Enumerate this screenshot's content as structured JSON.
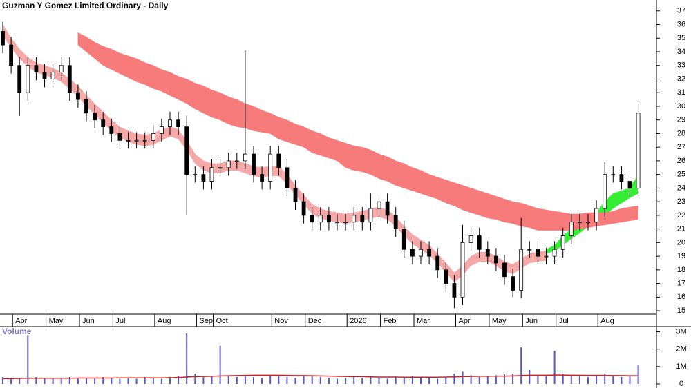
{
  "chart_data": [
    {
      "type": "candlestick",
      "title": "Guzman Y Gomez Limited Ordinary - Daily",
      "categories": [
        null,
        null,
        "Apr",
        null,
        null,
        null,
        "May",
        null,
        null,
        null,
        "Jun",
        null,
        null,
        null,
        "Jul",
        null,
        null,
        null,
        null,
        "Aug",
        null,
        null,
        null,
        null,
        "Sep",
        null,
        "Oct",
        null,
        null,
        null,
        null,
        null,
        null,
        "Nov",
        null,
        null,
        null,
        "Dec",
        null,
        null,
        null,
        null,
        "2026",
        null,
        null,
        null,
        "Feb",
        null,
        null,
        null,
        "Mar",
        null,
        null,
        null,
        null,
        "Apr",
        null,
        null,
        null,
        "May",
        null,
        null,
        null,
        "Jun",
        null,
        null,
        null,
        "Jul",
        null,
        null,
        null,
        null,
        "Aug",
        null,
        null,
        null,
        null
      ],
      "open": [
        35.5,
        34.5,
        33,
        31,
        33,
        32.5,
        32,
        32.5,
        33,
        31,
        30.5,
        29.5,
        29,
        28.5,
        28,
        27.5,
        27.5,
        27.5,
        27.5,
        28,
        28.5,
        29,
        28.5,
        25,
        25,
        24.5,
        25.5,
        25.5,
        26,
        26,
        26.5,
        25,
        24.5,
        26.5,
        25.5,
        24,
        23,
        22,
        21.5,
        22,
        21.5,
        21.5,
        21.5,
        22,
        21.5,
        22.5,
        23,
        22,
        21,
        19.5,
        19,
        19.5,
        19,
        18,
        17,
        16,
        20,
        20.5,
        19.5,
        19,
        18.5,
        17.5,
        16.5,
        19.5,
        19.5,
        19,
        19,
        19.5,
        20.5,
        21.5,
        21.5,
        21.5,
        22.5,
        25,
        25,
        24.5,
        24
      ],
      "high": [
        36.2,
        35.1,
        33.6,
        33.6,
        33.6,
        33.1,
        33.1,
        33.6,
        33.6,
        31.6,
        31.1,
        30.1,
        29.6,
        29.1,
        28.6,
        28.1,
        28.1,
        28.1,
        28.6,
        29.1,
        29.6,
        29.6,
        29.3,
        25.6,
        25.6,
        26.1,
        26.1,
        26.6,
        26.6,
        34.1,
        27.1,
        25.6,
        27.1,
        27.1,
        26.1,
        24.6,
        23.6,
        22.6,
        22.6,
        22.6,
        22.1,
        22.1,
        22.6,
        22.6,
        23.6,
        23.6,
        23.6,
        22.6,
        21.6,
        20.1,
        20.1,
        20.1,
        19.6,
        18.6,
        17.6,
        21.3,
        21.1,
        21.1,
        20.1,
        19.6,
        19.1,
        18.1,
        21.8,
        20.1,
        20.1,
        19.6,
        20.1,
        21.1,
        22.1,
        22.1,
        22.1,
        23.1,
        25.9,
        25.6,
        25.6,
        25.1,
        30.2
      ],
      "low": [
        33.9,
        32.4,
        29.3,
        30.4,
        31.9,
        31.4,
        31.4,
        31.9,
        30.4,
        29.9,
        28.9,
        28.4,
        27.9,
        27.4,
        26.9,
        26.9,
        26.9,
        26.9,
        26.9,
        27.4,
        27.9,
        27.9,
        22.0,
        24.4,
        23.9,
        23.9,
        24.9,
        24.9,
        25.4,
        25.4,
        24.4,
        23.9,
        23.9,
        24.9,
        23.4,
        22.4,
        21.4,
        20.9,
        20.9,
        20.9,
        20.9,
        20.9,
        20.9,
        20.9,
        20.9,
        21.9,
        21.4,
        20.4,
        18.9,
        18.4,
        18.4,
        18.4,
        17.4,
        16.4,
        15.2,
        15.4,
        19.4,
        18.9,
        18.4,
        17.9,
        16.9,
        16.0,
        15.9,
        18.9,
        18.4,
        18.4,
        18.4,
        18.9,
        19.9,
        20.9,
        20.9,
        20.9,
        21.9,
        24.4,
        23.9,
        23.4,
        23.4
      ],
      "close": [
        34.5,
        33,
        31,
        33,
        32.5,
        32,
        32.5,
        33,
        31,
        30.5,
        29.5,
        29,
        28.5,
        28,
        27.5,
        27.5,
        27.5,
        27.5,
        28,
        28.5,
        29,
        28.5,
        25,
        25,
        24.5,
        25.5,
        25.5,
        26,
        26,
        26.5,
        25,
        24.5,
        26.5,
        25.5,
        24,
        23,
        22,
        21.5,
        22,
        21.5,
        21.5,
        21.5,
        22,
        21.5,
        22.5,
        23,
        22,
        21,
        19.5,
        19,
        19.5,
        19,
        18,
        17,
        16,
        20,
        20.5,
        19.5,
        19,
        18.5,
        17.5,
        16.5,
        19.5,
        19.5,
        19,
        19,
        19.5,
        20.5,
        21.5,
        21.5,
        21.5,
        22.5,
        25,
        25,
        24.5,
        24,
        29.5
      ],
      "bands": [
        {
          "color": "#f5a8a8",
          "upper": [
            36,
            35,
            34.2,
            33.6,
            33.2,
            33,
            32.8,
            32.5,
            32,
            31.5,
            30.8,
            30.2,
            29.6,
            29,
            28.5,
            28.2,
            28,
            27.9,
            28,
            28.3,
            28.5,
            28.3,
            27.5,
            26.5,
            26,
            25.8,
            25.8,
            26,
            26,
            25.8,
            25.6,
            25.5,
            25.6,
            25.6,
            25,
            24.2,
            23.5,
            22.8,
            22.5,
            22.3,
            22.2,
            22.1,
            22.2,
            22.3,
            22.5,
            22.6,
            22.4,
            21.9,
            21.2,
            20.6,
            20.2,
            19.8,
            19.2,
            18.5,
            17.8,
            18.3,
            19.0,
            19.3,
            19.3,
            19.0,
            18.6,
            18.4,
            18.8,
            19.2,
            19.3,
            19.4,
            null,
            null,
            null,
            null,
            null,
            null,
            null,
            null,
            null,
            null,
            null
          ],
          "lower": [
            35.2,
            34.3,
            33.5,
            32.9,
            32.5,
            32.3,
            32.1,
            31.8,
            31.3,
            30.7,
            30.0,
            29.4,
            28.8,
            28.2,
            27.7,
            27.4,
            27.2,
            27.1,
            27.2,
            27.5,
            27.8,
            27.6,
            26.8,
            25.8,
            25.3,
            25.1,
            25.1,
            25.3,
            25.3,
            25.1,
            24.9,
            24.8,
            24.9,
            24.9,
            24.3,
            23.5,
            22.8,
            22.1,
            21.8,
            21.6,
            21.5,
            21.4,
            21.5,
            21.6,
            21.8,
            21.9,
            21.7,
            21.2,
            20.5,
            19.9,
            19.5,
            19.1,
            18.5,
            17.8,
            17.1,
            17.6,
            18.3,
            18.6,
            18.6,
            18.3,
            17.9,
            17.7,
            18.1,
            18.5,
            18.6,
            18.7,
            null,
            null,
            null,
            null,
            null,
            null,
            null,
            null,
            null,
            null,
            null
          ]
        },
        {
          "color": "#33ee33",
          "upper": [
            null,
            null,
            null,
            null,
            null,
            null,
            null,
            null,
            null,
            null,
            null,
            null,
            null,
            null,
            null,
            null,
            null,
            null,
            null,
            null,
            null,
            null,
            null,
            null,
            null,
            null,
            null,
            null,
            null,
            null,
            null,
            null,
            null,
            null,
            null,
            null,
            null,
            null,
            null,
            null,
            null,
            null,
            null,
            null,
            null,
            null,
            null,
            null,
            null,
            null,
            null,
            null,
            null,
            null,
            null,
            null,
            null,
            null,
            null,
            null,
            null,
            null,
            null,
            null,
            null,
            19.5,
            19.8,
            20.5,
            21.0,
            21.4,
            21.8,
            22.2,
            23.0,
            23.6,
            23.8,
            24.0,
            25.0
          ],
          "lower": [
            null,
            null,
            null,
            null,
            null,
            null,
            null,
            null,
            null,
            null,
            null,
            null,
            null,
            null,
            null,
            null,
            null,
            null,
            null,
            null,
            null,
            null,
            null,
            null,
            null,
            null,
            null,
            null,
            null,
            null,
            null,
            null,
            null,
            null,
            null,
            null,
            null,
            null,
            null,
            null,
            null,
            null,
            null,
            null,
            null,
            null,
            null,
            null,
            null,
            null,
            null,
            null,
            null,
            null,
            null,
            null,
            null,
            null,
            null,
            null,
            null,
            null,
            null,
            null,
            null,
            19.2,
            19.4,
            19.8,
            20.3,
            20.7,
            21.2,
            21.6,
            22.0,
            22.5,
            22.9,
            23.3,
            23.6
          ]
        },
        {
          "color": "#f77b7b",
          "upper": [
            null,
            null,
            null,
            null,
            null,
            null,
            null,
            null,
            null,
            35.4,
            35.1,
            34.7,
            34.4,
            34.2,
            33.9,
            33.7,
            33.5,
            33.2,
            33.0,
            32.7,
            32.5,
            32.2,
            32.0,
            31.7,
            31.5,
            31.2,
            31.0,
            30.7,
            30.5,
            30.2,
            30.0,
            29.7,
            29.5,
            29.2,
            29.0,
            28.7,
            28.5,
            28.2,
            28.0,
            27.7,
            27.5,
            27.3,
            27.1,
            27.0,
            26.8,
            26.5,
            26.3,
            26.0,
            25.8,
            25.5,
            25.3,
            25.0,
            24.8,
            24.6,
            24.4,
            24.2,
            24.0,
            23.8,
            23.6,
            23.4,
            23.2,
            23.0,
            22.9,
            22.7,
            22.5,
            22.4,
            22.3,
            22.2,
            22.1,
            22.1,
            22.2,
            22.2,
            22.2,
            22.3,
            22.5,
            22.6,
            22.7
          ],
          "lower": [
            null,
            null,
            null,
            null,
            null,
            null,
            null,
            null,
            null,
            34.5,
            34.0,
            33.5,
            33.0,
            32.7,
            32.4,
            32.1,
            31.8,
            31.6,
            31.3,
            31.1,
            30.8,
            30.5,
            30.2,
            29.8,
            29.5,
            29.2,
            29.0,
            28.7,
            28.5,
            28.4,
            28.2,
            28.1,
            28.0,
            27.6,
            27.4,
            27.2,
            27.0,
            26.6,
            26.4,
            26.2,
            26.0,
            25.5,
            25.3,
            25.2,
            25.0,
            24.7,
            24.5,
            24.2,
            24.0,
            23.8,
            23.6,
            23.4,
            23.2,
            22.9,
            22.7,
            22.4,
            22.2,
            22.0,
            21.8,
            21.7,
            21.5,
            21.4,
            21.2,
            21.1,
            20.9,
            20.9,
            20.9,
            20.9,
            20.9,
            21.0,
            21.1,
            21.2,
            21.3,
            21.4,
            21.5,
            21.6,
            21.7
          ]
        }
      ],
      "ylim": [
        14.75,
        37.8
      ],
      "yticks": [
        15,
        16,
        17,
        18,
        19,
        20,
        21,
        22,
        23,
        24,
        25,
        26,
        27,
        28,
        29,
        30,
        31,
        32,
        33,
        34,
        35,
        36,
        37
      ]
    },
    {
      "type": "bar",
      "title": "Volume",
      "color": "#5a57c8",
      "average_color": "#cc2222",
      "values": [
        400000,
        350000,
        300000,
        2800000,
        400000,
        350000,
        300000,
        350000,
        400000,
        300000,
        350000,
        300000,
        400000,
        350000,
        300000,
        350000,
        300000,
        400000,
        350000,
        300000,
        400000,
        450000,
        2900000,
        600000,
        400000,
        450000,
        2200000,
        500000,
        400000,
        450000,
        400000,
        350000,
        500000,
        450000,
        400000,
        350000,
        500000,
        450000,
        400000,
        350000,
        300000,
        350000,
        400000,
        350000,
        400000,
        350000,
        300000,
        400000,
        350000,
        450000,
        400000,
        350000,
        300000,
        400000,
        600000,
        700000,
        500000,
        400000,
        450000,
        500000,
        550000,
        600000,
        2100000,
        800000,
        500000,
        450000,
        1900000,
        600000,
        500000,
        450000,
        400000,
        500000,
        600000,
        500000,
        400000,
        450000,
        1100000
      ],
      "average": [
        300000,
        310000,
        320000,
        330000,
        330000,
        330000,
        330000,
        330000,
        330000,
        340000,
        340000,
        340000,
        340000,
        340000,
        350000,
        350000,
        350000,
        350000,
        350000,
        350000,
        360000,
        370000,
        400000,
        420000,
        430000,
        440000,
        460000,
        470000,
        480000,
        490000,
        500000,
        500000,
        500000,
        500000,
        490000,
        480000,
        480000,
        470000,
        460000,
        450000,
        440000,
        430000,
        420000,
        420000,
        410000,
        400000,
        400000,
        400000,
        390000,
        390000,
        390000,
        390000,
        390000,
        400000,
        410000,
        420000,
        430000,
        440000,
        440000,
        450000,
        450000,
        460000,
        480000,
        500000,
        500000,
        500000,
        510000,
        510000,
        500000,
        500000,
        490000,
        490000,
        490000,
        480000,
        480000,
        470000,
        470000
      ],
      "ylim": [
        0,
        3300000
      ],
      "yticks": [
        0,
        {
          "value": 1000000,
          "label": "1M"
        },
        {
          "value": 2000000,
          "label": "2M"
        },
        {
          "value": 3000000,
          "label": "3M"
        }
      ]
    }
  ]
}
